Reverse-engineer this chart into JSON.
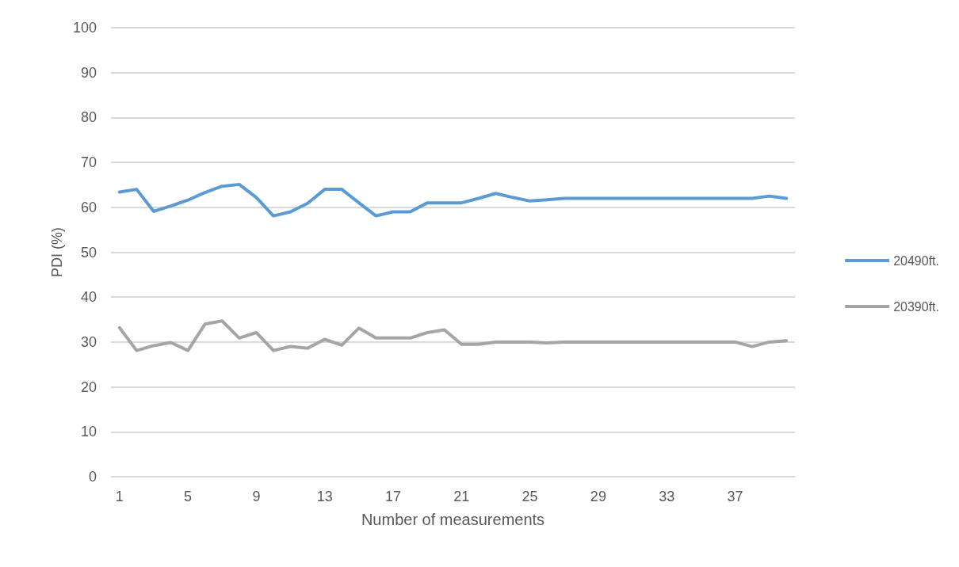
{
  "chart_data": {
    "type": "line",
    "xlabel": "Number of measurements",
    "ylabel": "PDI (%)",
    "categories": [
      "1",
      null,
      null,
      null,
      "5",
      null,
      null,
      null,
      "9",
      null,
      null,
      null,
      "13",
      null,
      null,
      null,
      "17",
      null,
      null,
      null,
      "21",
      null,
      null,
      null,
      "25",
      null,
      null,
      null,
      "29",
      null,
      null,
      null,
      "33",
      null,
      null,
      null,
      "37",
      null,
      null,
      null
    ],
    "series": [
      {
        "name": "20490ft.",
        "color": "#5b9bd5",
        "values": [
          63.4,
          64.0,
          59.1,
          60.3,
          61.6,
          63.3,
          64.7,
          65.1,
          62.2,
          58.1,
          59.0,
          60.9,
          64.0,
          64.0,
          61.0,
          58.1,
          59.0,
          59.0,
          61.0,
          61.0,
          61.0,
          62.0,
          63.1,
          62.2,
          61.4,
          61.7,
          62.0,
          62.0,
          62.0,
          62.0,
          62.0,
          62.0,
          62.0,
          62.0,
          62.0,
          62.0,
          62.0,
          62.0,
          62.5,
          62.0
        ]
      },
      {
        "name": "20390ft.",
        "color": "#a5a5a5",
        "values": [
          33.2,
          28.1,
          29.2,
          29.9,
          28.1,
          34.0,
          34.7,
          30.9,
          32.1,
          28.1,
          29.0,
          28.6,
          30.6,
          29.3,
          33.1,
          30.9,
          30.9,
          30.9,
          32.1,
          32.7,
          29.5,
          29.5,
          30.0,
          30.0,
          30.0,
          29.8,
          30.0,
          30.0,
          30.0,
          30.0,
          30.0,
          30.0,
          30.0,
          30.0,
          30.0,
          30.0,
          30.0,
          29.0,
          30.0,
          30.3
        ]
      }
    ],
    "ylim": [
      0,
      100
    ],
    "yticks": [
      0,
      10,
      20,
      30,
      40,
      50,
      60,
      70,
      80,
      90,
      100
    ],
    "grid": "y",
    "legend": "right",
    "marker": "none",
    "line_style": "solid"
  }
}
